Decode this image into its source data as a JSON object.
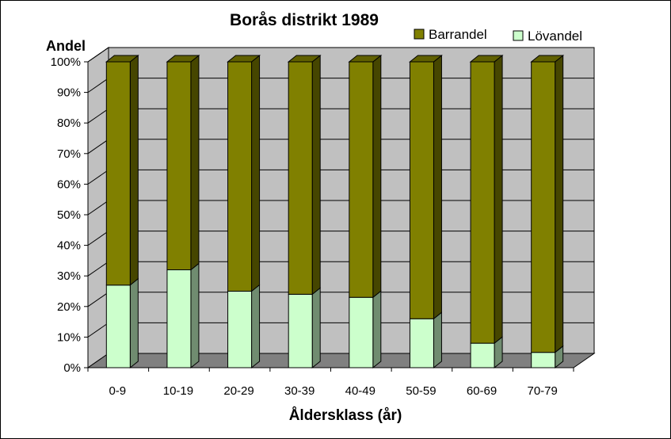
{
  "chart_data": {
    "type": "bar",
    "stacked": true,
    "three_d": true,
    "title": "Borås distrikt 1989",
    "ylabel": "Andel",
    "xlabel": "Åldersklass (år)",
    "categories": [
      "0-9",
      "10-19",
      "20-29",
      "30-39",
      "40-49",
      "50-59",
      "60-69",
      "70-79"
    ],
    "series": [
      {
        "name": "Lövandel",
        "color": "#ccffcc",
        "values": [
          27,
          32,
          25,
          24,
          23,
          16,
          8,
          5
        ]
      },
      {
        "name": "Barrandel",
        "color": "#808000",
        "values": [
          73,
          68,
          75,
          76,
          77,
          84,
          92,
          95
        ]
      }
    ],
    "yticks": [
      "0%",
      "10%",
      "20%",
      "30%",
      "40%",
      "50%",
      "60%",
      "70%",
      "80%",
      "90%",
      "100%"
    ],
    "ylim": [
      0,
      100
    ],
    "grid": true,
    "legend": "top-right",
    "colors": {
      "wall": "#c0c0c0",
      "floor": "#808080"
    }
  }
}
